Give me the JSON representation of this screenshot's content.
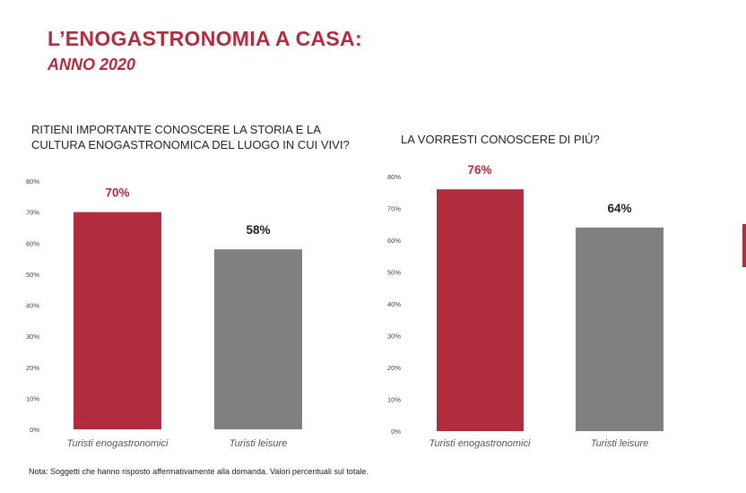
{
  "header": {
    "title": "L’ENOGASTRONOMIA A CASA:",
    "subtitle": "ANNO 2020"
  },
  "colors": {
    "accent": "#b12c3c",
    "gray": "#808080",
    "dark_label": "#222222"
  },
  "chart_data": [
    {
      "type": "bar",
      "title": "RITIENI IMPORTANTE CONOSCERE LA STORIA E LA CULTURA ENOGASTRONOMICA DEL LUOGO IN CUI VIVI?",
      "categories": [
        "Turisti enogastronomici",
        "Turisti leisure"
      ],
      "values": [
        70,
        58
      ],
      "data_labels": [
        "70%",
        "58%"
      ],
      "ylim": [
        0,
        80
      ],
      "yticks": [
        "0%",
        "10%",
        "20%",
        "30%",
        "40%",
        "50%",
        "60%",
        "70%",
        "80%"
      ],
      "grid": false
    },
    {
      "type": "bar",
      "title": "LA VORRESTI CONOSCERE DI PIÙ?",
      "categories": [
        "Turisti enogastronomici",
        "Turisti leisure"
      ],
      "values": [
        76,
        64
      ],
      "data_labels": [
        "76%",
        "64%"
      ],
      "ylim": [
        0,
        80
      ],
      "yticks": [
        "0%",
        "10%",
        "20%",
        "30%",
        "40%",
        "50%",
        "60%",
        "70%",
        "80%"
      ],
      "grid": false
    }
  ],
  "footer": {
    "note": "Nota: Soggetti che hanno risposto affermativamente alla domanda. Valori percentuali sul totale."
  }
}
